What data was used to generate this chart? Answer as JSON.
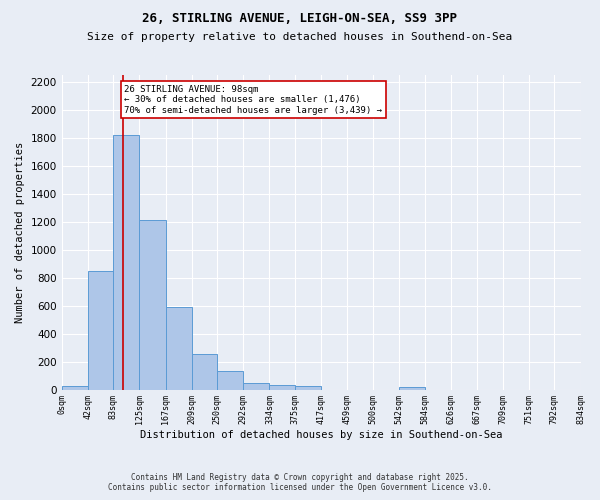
{
  "title1": "26, STIRLING AVENUE, LEIGH-ON-SEA, SS9 3PP",
  "title2": "Size of property relative to detached houses in Southend-on-Sea",
  "xlabel": "Distribution of detached houses by size in Southend-on-Sea",
  "ylabel": "Number of detached properties",
  "bin_edges": [
    0,
    42,
    83,
    125,
    167,
    209,
    250,
    292,
    334,
    375,
    417,
    459,
    500,
    542,
    584,
    626,
    667,
    709,
    751,
    792,
    834
  ],
  "bin_labels": [
    "0sqm",
    "42sqm",
    "83sqm",
    "125sqm",
    "167sqm",
    "209sqm",
    "250sqm",
    "292sqm",
    "334sqm",
    "375sqm",
    "417sqm",
    "459sqm",
    "500sqm",
    "542sqm",
    "584sqm",
    "626sqm",
    "667sqm",
    "709sqm",
    "751sqm",
    "792sqm",
    "834sqm"
  ],
  "bar_values": [
    25,
    845,
    1820,
    1210,
    590,
    255,
    130,
    45,
    35,
    25,
    0,
    0,
    0,
    15,
    0,
    0,
    0,
    0,
    0,
    0
  ],
  "bar_color": "#aec6e8",
  "bar_edge_color": "#5b9bd5",
  "property_size": 98,
  "property_line_color": "#cc0000",
  "annotation_text": "26 STIRLING AVENUE: 98sqm\n← 30% of detached houses are smaller (1,476)\n70% of semi-detached houses are larger (3,439) →",
  "annotation_box_color": "#ffffff",
  "annotation_box_edge": "#cc0000",
  "ylim": [
    0,
    2250
  ],
  "yticks": [
    0,
    200,
    400,
    600,
    800,
    1000,
    1200,
    1400,
    1600,
    1800,
    2000,
    2200
  ],
  "bg_color": "#e8edf5",
  "grid_color": "#ffffff",
  "footer1": "Contains HM Land Registry data © Crown copyright and database right 2025.",
  "footer2": "Contains public sector information licensed under the Open Government Licence v3.0."
}
